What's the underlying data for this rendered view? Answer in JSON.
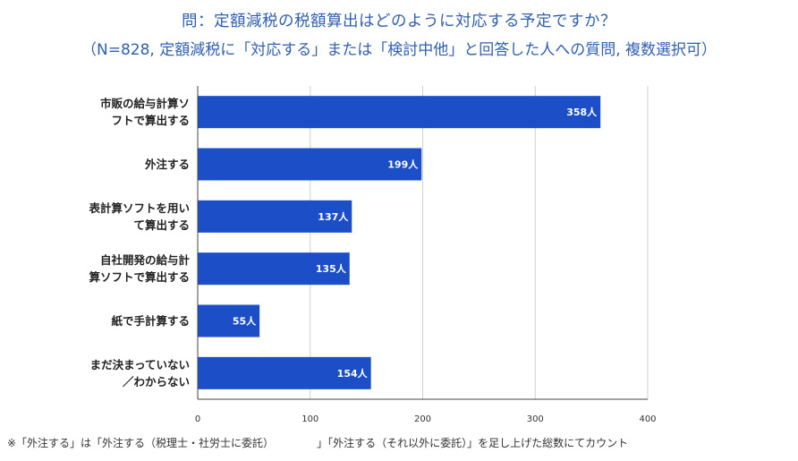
{
  "title": {
    "line1": "問：定額減税の税額算出はどのように対応する予定ですか？",
    "line2": "（N=828, 定額減税に「対応する」または「検討中他」と回答した人への質問, 複数選択可）"
  },
  "footnote": {
    "part1": "※「外注する」は「外注する（税理士・社労士に委託）",
    "part2": "」「外注する（それ以外に委託）」を足し上げた総数にてカウント"
  },
  "colors": {
    "bar": "#1c4fc7",
    "grid": "#cfcfcf",
    "axis": "#444444",
    "title": "#2f5fb3"
  },
  "chart_data": {
    "type": "bar",
    "orientation": "horizontal",
    "categories": [
      [
        "市販の給与計算ソ",
        "フトで算出する"
      ],
      [
        "外注する"
      ],
      [
        "表計算ソフトを用い",
        "て算出する"
      ],
      [
        "自社開発の給与計",
        "算ソフトで算出する"
      ],
      [
        "紙で手計算する"
      ],
      [
        "まだ決まっていない",
        "／わからない"
      ]
    ],
    "values": [
      358,
      199,
      137,
      135,
      55,
      154
    ],
    "value_labels": [
      "358人",
      "199人",
      "137人",
      "135人",
      "55人",
      "154人"
    ],
    "xlim": [
      0,
      400
    ],
    "xticks": [
      0,
      100,
      200,
      300,
      400
    ],
    "grid": true
  }
}
